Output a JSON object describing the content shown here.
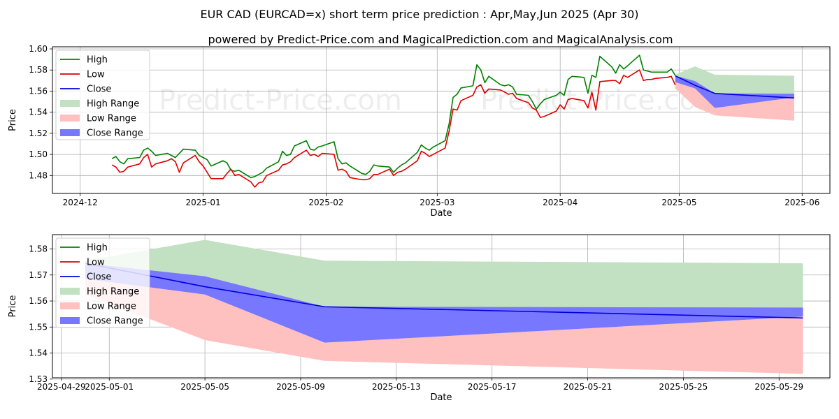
{
  "title": "EUR CAD (EURCAD=x) short term price prediction : Apr,May,Jun 2025 (Apr 30)",
  "subtitle": "powered by Predict-Price.com and MagicalPrediction.com and MagicalAnalysis.com",
  "watermark": "Predict-Price.com",
  "colors": {
    "high": "#008000",
    "low": "#dd0000",
    "close": "#0000dd",
    "high_range": "#c2e0c2",
    "low_range": "#ffc0c0",
    "close_range": "#7777ff",
    "grid": "#b0b0b0"
  },
  "chart_data": [
    {
      "type": "line",
      "xlabel": "Date",
      "ylabel": "Price",
      "x_axis": "date",
      "xlim": [
        "2024-11-24",
        "2025-06-08"
      ],
      "ylim": [
        1.463,
        1.602
      ],
      "xticks": [
        "2024-12-01",
        "2025-01-01",
        "2025-02-01",
        "2025-03-01",
        "2025-04-01",
        "2025-05-01",
        "2025-06-01"
      ],
      "xtick_labels": [
        "2024-12",
        "2025-01",
        "2025-02",
        "2025-03",
        "2025-04",
        "2025-05",
        "2025-06"
      ],
      "yticks": [
        1.48,
        1.5,
        1.52,
        1.54,
        1.56,
        1.58,
        1.6
      ],
      "ytick_labels": [
        "1.48",
        "1.50",
        "1.52",
        "1.54",
        "1.56",
        "1.58",
        "1.60"
      ],
      "grid": true,
      "legend_position": "top-left",
      "legend": [
        "High",
        "Low",
        "Close",
        "High Range",
        "Low Range",
        "Close Range"
      ],
      "series": [
        {
          "name": "High",
          "x": [
            "2024-12-09",
            "2024-12-10",
            "2024-12-11",
            "2024-12-12",
            "2024-12-13",
            "2024-12-16",
            "2024-12-17",
            "2024-12-18",
            "2024-12-19",
            "2024-12-20",
            "2024-12-23",
            "2024-12-24",
            "2024-12-25",
            "2024-12-26",
            "2024-12-27",
            "2024-12-30",
            "2024-12-31",
            "2025-01-01",
            "2025-01-02",
            "2025-01-03",
            "2025-01-06",
            "2025-01-07",
            "2025-01-08",
            "2025-01-09",
            "2025-01-10",
            "2025-01-13",
            "2025-01-14",
            "2025-01-15",
            "2025-01-16",
            "2025-01-17",
            "2025-01-20",
            "2025-01-21",
            "2025-01-22",
            "2025-01-23",
            "2025-01-24",
            "2025-01-27",
            "2025-01-28",
            "2025-01-29",
            "2025-01-30",
            "2025-01-31",
            "2025-02-03",
            "2025-02-04",
            "2025-02-05",
            "2025-02-06",
            "2025-02-07",
            "2025-02-10",
            "2025-02-11",
            "2025-02-12",
            "2025-02-13",
            "2025-02-14",
            "2025-02-17",
            "2025-02-18",
            "2025-02-19",
            "2025-02-20",
            "2025-02-21",
            "2025-02-24",
            "2025-02-25",
            "2025-02-26",
            "2025-02-27",
            "2025-02-28",
            "2025-03-03",
            "2025-03-04",
            "2025-03-05",
            "2025-03-06",
            "2025-03-07",
            "2025-03-10",
            "2025-03-11",
            "2025-03-12",
            "2025-03-13",
            "2025-03-14",
            "2025-03-17",
            "2025-03-18",
            "2025-03-19",
            "2025-03-20",
            "2025-03-21",
            "2025-03-24",
            "2025-03-25",
            "2025-03-26",
            "2025-03-27",
            "2025-03-28",
            "2025-03-31",
            "2025-04-01",
            "2025-04-02",
            "2025-04-03",
            "2025-04-04",
            "2025-04-07",
            "2025-04-08",
            "2025-04-09",
            "2025-04-10",
            "2025-04-11",
            "2025-04-14",
            "2025-04-15",
            "2025-04-16",
            "2025-04-17",
            "2025-04-18",
            "2025-04-21",
            "2025-04-22",
            "2025-04-23",
            "2025-04-24",
            "2025-04-25",
            "2025-04-28",
            "2025-04-29",
            "2025-04-30"
          ],
          "values": [
            1.496,
            1.498,
            1.493,
            1.491,
            1.496,
            1.497,
            1.504,
            1.506,
            1.503,
            1.499,
            1.501,
            1.499,
            1.497,
            1.501,
            1.505,
            1.504,
            1.499,
            1.497,
            1.495,
            1.489,
            1.494,
            1.492,
            1.485,
            1.484,
            1.485,
            1.478,
            1.479,
            1.481,
            1.483,
            1.487,
            1.493,
            1.503,
            1.499,
            1.5,
            1.508,
            1.513,
            1.505,
            1.504,
            1.507,
            1.508,
            1.512,
            1.496,
            1.491,
            1.492,
            1.489,
            1.482,
            1.481,
            1.484,
            1.49,
            1.489,
            1.488,
            1.483,
            1.487,
            1.49,
            1.492,
            1.502,
            1.509,
            1.506,
            1.504,
            1.507,
            1.513,
            1.529,
            1.554,
            1.557,
            1.563,
            1.565,
            1.585,
            1.58,
            1.568,
            1.574,
            1.566,
            1.565,
            1.566,
            1.564,
            1.557,
            1.556,
            1.55,
            1.543,
            1.548,
            1.552,
            1.556,
            1.559,
            1.556,
            1.571,
            1.574,
            1.573,
            1.558,
            1.575,
            1.573,
            1.593,
            1.583,
            1.577,
            1.585,
            1.581,
            1.584,
            1.594,
            1.58,
            1.579,
            1.578,
            1.578,
            1.578,
            1.581,
            1.575
          ]
        },
        {
          "name": "Low",
          "x": [
            "2024-12-09",
            "2024-12-10",
            "2024-12-11",
            "2024-12-12",
            "2024-12-13",
            "2024-12-16",
            "2024-12-17",
            "2024-12-18",
            "2024-12-19",
            "2024-12-20",
            "2024-12-23",
            "2024-12-24",
            "2024-12-25",
            "2024-12-26",
            "2024-12-27",
            "2024-12-30",
            "2024-12-31",
            "2025-01-01",
            "2025-01-02",
            "2025-01-03",
            "2025-01-06",
            "2025-01-07",
            "2025-01-08",
            "2025-01-09",
            "2025-01-10",
            "2025-01-13",
            "2025-01-14",
            "2025-01-15",
            "2025-01-16",
            "2025-01-17",
            "2025-01-20",
            "2025-01-21",
            "2025-01-22",
            "2025-01-23",
            "2025-01-24",
            "2025-01-27",
            "2025-01-28",
            "2025-01-29",
            "2025-01-30",
            "2025-01-31",
            "2025-02-03",
            "2025-02-04",
            "2025-02-05",
            "2025-02-06",
            "2025-02-07",
            "2025-02-10",
            "2025-02-11",
            "2025-02-12",
            "2025-02-13",
            "2025-02-14",
            "2025-02-17",
            "2025-02-18",
            "2025-02-19",
            "2025-02-20",
            "2025-02-21",
            "2025-02-24",
            "2025-02-25",
            "2025-02-26",
            "2025-02-27",
            "2025-02-28",
            "2025-03-03",
            "2025-03-04",
            "2025-03-05",
            "2025-03-06",
            "2025-03-07",
            "2025-03-10",
            "2025-03-11",
            "2025-03-12",
            "2025-03-13",
            "2025-03-14",
            "2025-03-17",
            "2025-03-18",
            "2025-03-19",
            "2025-03-20",
            "2025-03-21",
            "2025-03-24",
            "2025-03-25",
            "2025-03-26",
            "2025-03-27",
            "2025-03-28",
            "2025-03-31",
            "2025-04-01",
            "2025-04-02",
            "2025-04-03",
            "2025-04-04",
            "2025-04-07",
            "2025-04-08",
            "2025-04-09",
            "2025-04-10",
            "2025-04-11",
            "2025-04-14",
            "2025-04-15",
            "2025-04-16",
            "2025-04-17",
            "2025-04-18",
            "2025-04-21",
            "2025-04-22",
            "2025-04-23",
            "2025-04-24",
            "2025-04-25",
            "2025-04-28",
            "2025-04-29",
            "2025-04-30"
          ],
          "values": [
            1.49,
            1.488,
            1.483,
            1.484,
            1.488,
            1.491,
            1.497,
            1.5,
            1.488,
            1.491,
            1.494,
            1.496,
            1.493,
            1.483,
            1.492,
            1.499,
            1.493,
            1.489,
            1.483,
            1.477,
            1.477,
            1.482,
            1.486,
            1.48,
            1.481,
            1.474,
            1.469,
            1.473,
            1.474,
            1.48,
            1.485,
            1.49,
            1.491,
            1.493,
            1.497,
            1.504,
            1.499,
            1.5,
            1.498,
            1.501,
            1.5,
            1.485,
            1.486,
            1.484,
            1.478,
            1.476,
            1.476,
            1.477,
            1.481,
            1.481,
            1.486,
            1.48,
            1.483,
            1.484,
            1.486,
            1.494,
            1.503,
            1.501,
            1.498,
            1.5,
            1.506,
            1.522,
            1.543,
            1.542,
            1.551,
            1.556,
            1.564,
            1.566,
            1.558,
            1.562,
            1.561,
            1.559,
            1.557,
            1.558,
            1.553,
            1.549,
            1.544,
            1.542,
            1.535,
            1.536,
            1.541,
            1.547,
            1.543,
            1.552,
            1.553,
            1.551,
            1.544,
            1.559,
            1.542,
            1.569,
            1.57,
            1.57,
            1.567,
            1.575,
            1.573,
            1.58,
            1.57,
            1.571,
            1.571,
            1.572,
            1.573,
            1.574,
            1.566
          ]
        },
        {
          "name": "Close",
          "x": [
            "2025-04-30",
            "2025-05-05",
            "2025-05-10",
            "2025-05-30"
          ],
          "values": [
            1.5745,
            1.5655,
            1.5578,
            1.5535
          ]
        },
        {
          "name": "High Range",
          "x": [
            "2025-04-30",
            "2025-05-05",
            "2025-05-10",
            "2025-05-30"
          ],
          "upper": [
            1.5755,
            1.5835,
            1.5755,
            1.5745
          ],
          "lower": [
            1.5735,
            1.5695,
            1.5575,
            1.5575
          ]
        },
        {
          "name": "Low Range",
          "x": [
            "2025-04-30",
            "2025-05-05",
            "2025-05-10",
            "2025-05-30"
          ],
          "upper": [
            1.5685,
            1.5625,
            1.544,
            1.554
          ],
          "lower": [
            1.5625,
            1.545,
            1.537,
            1.532
          ]
        },
        {
          "name": "Close Range",
          "x": [
            "2025-04-30",
            "2025-05-05",
            "2025-05-10",
            "2025-05-30"
          ],
          "upper": [
            1.5745,
            1.5695,
            1.5578,
            1.5575
          ],
          "lower": [
            1.5685,
            1.5625,
            1.544,
            1.554
          ]
        }
      ]
    },
    {
      "type": "line",
      "xlabel": "Date",
      "ylabel": "Price",
      "x_axis": "date",
      "xlim": [
        "2025-04-28T15:00",
        "2025-05-31T03:00"
      ],
      "ylim": [
        1.5305,
        1.5855
      ],
      "xticks": [
        "2025-04-29",
        "2025-05-01",
        "2025-05-05",
        "2025-05-09",
        "2025-05-13",
        "2025-05-17",
        "2025-05-21",
        "2025-05-25",
        "2025-05-29"
      ],
      "xtick_labels": [
        "2025-04-29",
        "2025-05-01",
        "2025-05-05",
        "2025-05-09",
        "2025-05-13",
        "2025-05-17",
        "2025-05-21",
        "2025-05-25",
        "2025-05-29"
      ],
      "yticks": [
        1.53,
        1.54,
        1.55,
        1.56,
        1.57,
        1.58
      ],
      "ytick_labels": [
        "1.53",
        "1.54",
        "1.55",
        "1.56",
        "1.57",
        "1.58"
      ],
      "grid": true,
      "legend_position": "top-left",
      "legend": [
        "High",
        "Low",
        "Close",
        "High Range",
        "Low Range",
        "Close Range"
      ],
      "series": [
        {
          "name": "High",
          "x": [],
          "values": []
        },
        {
          "name": "Low",
          "x": [],
          "values": []
        },
        {
          "name": "Close",
          "x": [
            "2025-04-30",
            "2025-05-05",
            "2025-05-10",
            "2025-05-30"
          ],
          "values": [
            1.5745,
            1.5655,
            1.5578,
            1.5535
          ]
        },
        {
          "name": "High Range",
          "x": [
            "2025-04-30",
            "2025-05-05",
            "2025-05-10",
            "2025-05-30"
          ],
          "upper": [
            1.5755,
            1.5835,
            1.5755,
            1.5745
          ],
          "lower": [
            1.5735,
            1.5695,
            1.5575,
            1.5575
          ]
        },
        {
          "name": "Low Range",
          "x": [
            "2025-04-30",
            "2025-05-05",
            "2025-05-10",
            "2025-05-30"
          ],
          "upper": [
            1.5685,
            1.5625,
            1.544,
            1.554
          ],
          "lower": [
            1.5625,
            1.545,
            1.537,
            1.532
          ]
        },
        {
          "name": "Close Range",
          "x": [
            "2025-04-30",
            "2025-05-05",
            "2025-05-10",
            "2025-05-30"
          ],
          "upper": [
            1.5745,
            1.5695,
            1.5578,
            1.5575
          ],
          "lower": [
            1.5685,
            1.5625,
            1.544,
            1.554
          ]
        }
      ]
    }
  ]
}
